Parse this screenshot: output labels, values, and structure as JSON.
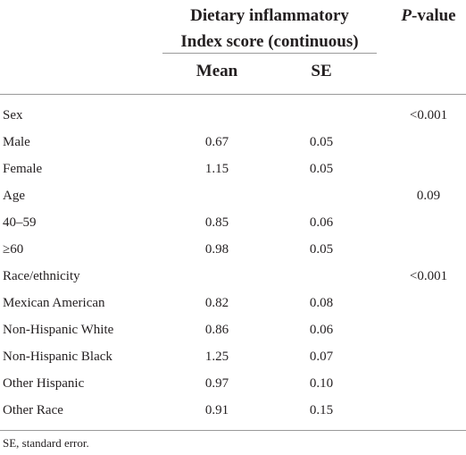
{
  "header": {
    "group_line1": "Dietary inflammatory",
    "group_line2": "Index score (continuous)",
    "pvalue_italic": "P",
    "pvalue_rest": "-value",
    "col_mean": "Mean",
    "col_se": "SE"
  },
  "rows": [
    {
      "label": "Sex",
      "mean": "",
      "se": "",
      "p": "<0.001"
    },
    {
      "label": "Male",
      "mean": "0.67",
      "se": "0.05",
      "p": ""
    },
    {
      "label": "Female",
      "mean": "1.15",
      "se": "0.05",
      "p": ""
    },
    {
      "label": "Age",
      "mean": "",
      "se": "",
      "p": "0.09"
    },
    {
      "label": "40–59",
      "mean": "0.85",
      "se": "0.06",
      "p": ""
    },
    {
      "label": "≥60",
      "mean": "0.98",
      "se": "0.05",
      "p": ""
    },
    {
      "label": "Race/ethnicity",
      "mean": "",
      "se": "",
      "p": "<0.001"
    },
    {
      "label": "Mexican American",
      "mean": "0.82",
      "se": "0.08",
      "p": ""
    },
    {
      "label": "Non-Hispanic White",
      "mean": "0.86",
      "se": "0.06",
      "p": ""
    },
    {
      "label": "Non-Hispanic Black",
      "mean": "1.25",
      "se": "0.07",
      "p": ""
    },
    {
      "label": "Other Hispanic",
      "mean": "0.97",
      "se": "0.10",
      "p": ""
    },
    {
      "label": "Other Race",
      "mean": "0.91",
      "se": "0.15",
      "p": ""
    }
  ],
  "footnote": "SE, standard error."
}
